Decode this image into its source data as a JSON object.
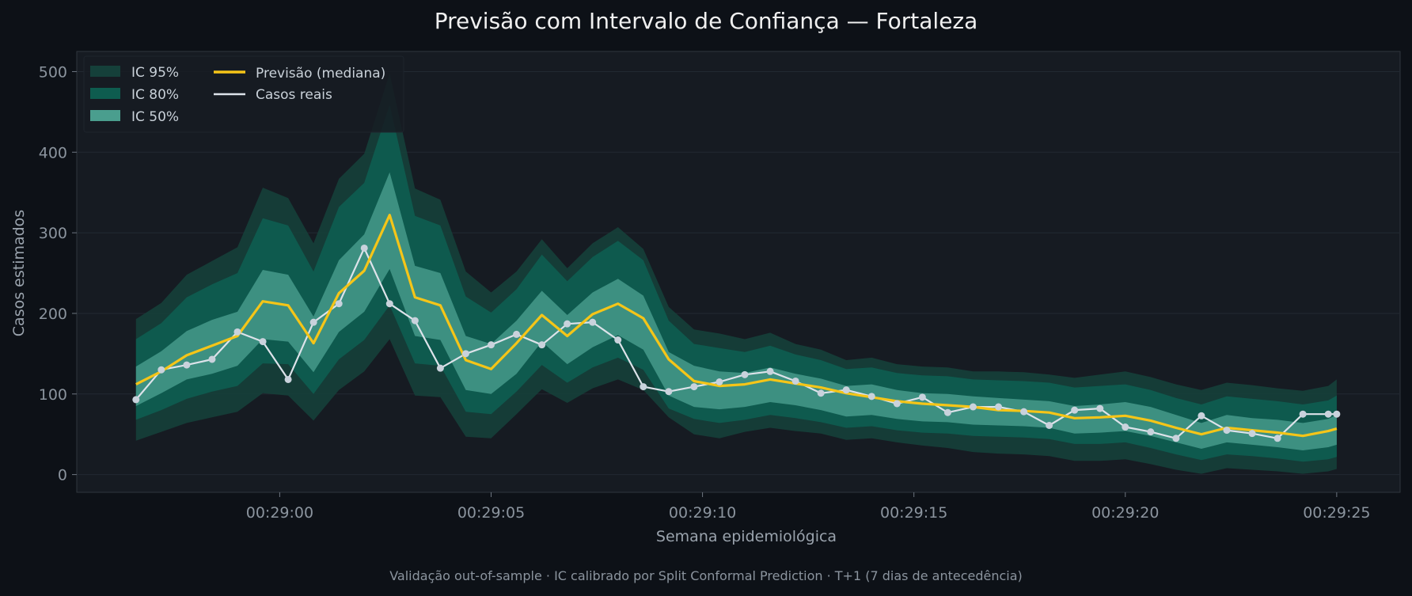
{
  "chart_data": {
    "type": "line",
    "title": "Previsão com Intervalo de Confiança — Fortaleza",
    "xlabel": "Semana epidemiológica",
    "ylabel": "Casos estimados",
    "footer": "Validação out-of-sample · IC calibrado por Split Conformal Prediction · T+1 (7 dias de antecedência)",
    "x_ticks": [
      "00:29:00",
      "00:29:05",
      "00:29:10",
      "00:29:15",
      "00:29:20",
      "00:29:25"
    ],
    "x_tick_positions": [
      0,
      5,
      10,
      15,
      20,
      25
    ],
    "x_range": [
      -4.8,
      26.5
    ],
    "y_ticks": [
      0,
      100,
      200,
      300,
      400,
      500
    ],
    "ylim": [
      -22,
      525
    ],
    "grid": true,
    "legend_position": "top-left",
    "legend": {
      "ci95": "IC 95%",
      "ci80": "IC 80%",
      "ci50": "IC 50%",
      "median": "Previsão (mediana)",
      "actual": "Casos reais"
    },
    "colors": {
      "ci95": "#15403a",
      "ci80": "#0e5c4f",
      "ci50": "#4a9e8e",
      "median": "#f5c518",
      "actual": "#dde3ea"
    },
    "x": [
      -3.4,
      -2.8,
      -2.2,
      -1.6,
      -1.0,
      -0.4,
      0.2,
      0.8,
      1.4,
      2.0,
      2.6,
      3.2,
      3.8,
      4.4,
      5.0,
      5.6,
      6.2,
      6.8,
      7.4,
      8.0,
      8.6,
      9.2,
      9.8,
      10.4,
      11.0,
      11.6,
      12.2,
      12.8,
      13.4,
      14.0,
      14.6,
      15.2,
      15.8,
      16.4,
      17.0,
      17.6,
      18.2,
      18.8,
      19.4,
      20.0,
      20.6,
      21.2,
      21.8,
      22.4,
      23.0,
      23.6,
      24.2,
      24.8,
      25.0
    ],
    "series": [
      {
        "name": "Casos reais",
        "values": [
          93,
          130,
          136,
          143,
          177,
          165,
          118,
          189,
          212,
          281,
          212,
          191,
          132,
          150,
          161,
          174,
          161,
          187,
          189,
          167,
          109,
          103,
          109,
          115,
          124,
          128,
          116,
          101,
          105,
          97,
          88,
          96,
          77,
          84,
          84,
          78,
          61,
          80,
          82,
          59,
          53,
          45,
          73,
          55,
          51,
          45,
          75,
          75,
          75
        ]
      },
      {
        "name": "Previsão (mediana)",
        "values": [
          112,
          128,
          148,
          160,
          172,
          215,
          210,
          163,
          225,
          253,
          322,
          220,
          210,
          142,
          131,
          163,
          198,
          172,
          199,
          212,
          194,
          143,
          116,
          110,
          112,
          118,
          113,
          108,
          101,
          96,
          91,
          88,
          86,
          84,
          80,
          79,
          77,
          70,
          71,
          73,
          67,
          58,
          50,
          58,
          55,
          52,
          48,
          54,
          57
        ]
      }
    ],
    "bands": {
      "ci95_upper": [
        193,
        213,
        248,
        265,
        282,
        356,
        343,
        287,
        367,
        398,
        498,
        355,
        341,
        252,
        226,
        252,
        292,
        256,
        287,
        307,
        280,
        208,
        180,
        175,
        168,
        176,
        162,
        155,
        142,
        145,
        137,
        134,
        133,
        128,
        128,
        127,
        124,
        120,
        124,
        128,
        121,
        112,
        105,
        114,
        111,
        107,
        104,
        110,
        118
      ],
      "ci80_upper": [
        168,
        188,
        220,
        236,
        250,
        318,
        309,
        252,
        332,
        362,
        459,
        321,
        309,
        221,
        201,
        230,
        273,
        240,
        270,
        290,
        266,
        191,
        162,
        157,
        152,
        160,
        149,
        142,
        131,
        133,
        126,
        123,
        122,
        118,
        117,
        116,
        114,
        108,
        110,
        112,
        105,
        95,
        87,
        97,
        94,
        91,
        87,
        92,
        98
      ],
      "ci50_upper": [
        134,
        153,
        178,
        192,
        202,
        254,
        248,
        196,
        266,
        298,
        375,
        259,
        250,
        172,
        162,
        191,
        228,
        198,
        226,
        243,
        222,
        152,
        135,
        128,
        126,
        133,
        125,
        119,
        110,
        112,
        105,
        101,
        100,
        97,
        95,
        93,
        91,
        85,
        87,
        90,
        84,
        74,
        64,
        74,
        70,
        68,
        64,
        69,
        74
      ],
      "ci50_lower": [
        85,
        101,
        118,
        125,
        135,
        168,
        165,
        127,
        177,
        202,
        255,
        172,
        167,
        105,
        100,
        125,
        165,
        137,
        158,
        173,
        155,
        98,
        84,
        81,
        84,
        90,
        86,
        80,
        72,
        74,
        69,
        66,
        65,
        62,
        61,
        60,
        58,
        51,
        52,
        54,
        48,
        40,
        32,
        40,
        37,
        34,
        30,
        34,
        37
      ],
      "ci80_lower": [
        68,
        80,
        94,
        103,
        110,
        138,
        137,
        100,
        143,
        167,
        210,
        138,
        135,
        78,
        75,
        103,
        136,
        114,
        133,
        145,
        130,
        82,
        69,
        64,
        68,
        74,
        70,
        65,
        58,
        60,
        55,
        52,
        51,
        48,
        47,
        46,
        44,
        38,
        38,
        40,
        33,
        25,
        18,
        25,
        23,
        20,
        16,
        19,
        22
      ],
      "ci95_lower": [
        42,
        53,
        64,
        71,
        78,
        101,
        98,
        67,
        105,
        128,
        168,
        98,
        96,
        47,
        45,
        75,
        106,
        89,
        107,
        118,
        105,
        71,
        50,
        45,
        53,
        58,
        54,
        51,
        43,
        45,
        40,
        36,
        33,
        28,
        26,
        25,
        23,
        17,
        17,
        19,
        13,
        6,
        1,
        8,
        6,
        4,
        1,
        4,
        7
      ]
    }
  }
}
